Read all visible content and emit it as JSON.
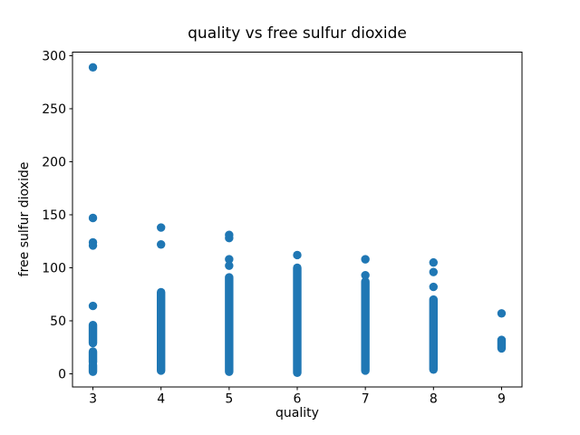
{
  "figure": {
    "title": "quality vs free sulfur dioxide",
    "xlabel": "quality",
    "ylabel": "free sulfur dioxide"
  },
  "chart_data": {
    "type": "scatter",
    "title": "quality vs free sulfur dioxide",
    "xlabel": "quality",
    "ylabel": "free sulfur dioxide",
    "marker_color": "#1f77b4",
    "background_color": "#ffffff",
    "grid": false,
    "legend": null,
    "xlim": [
      2.7,
      9.3
    ],
    "ylim": [
      -12.4,
      303.4
    ],
    "xticks": [
      3,
      4,
      5,
      6,
      7,
      8,
      9
    ],
    "yticks": [
      0,
      50,
      100,
      150,
      200,
      250,
      300
    ],
    "series": [
      {
        "quality": 3,
        "outlier_points": [
          289,
          147,
          124,
          121,
          64
        ],
        "dense_clusters": [
          [
            29,
            46
          ],
          [
            11,
            21
          ],
          [
            2,
            8
          ]
        ]
      },
      {
        "quality": 4,
        "outlier_points": [
          138,
          122
        ],
        "dense_clusters": [
          [
            3,
            77
          ]
        ]
      },
      {
        "quality": 5,
        "outlier_points": [
          131,
          128,
          108,
          102
        ],
        "dense_clusters": [
          [
            2,
            91
          ]
        ]
      },
      {
        "quality": 6,
        "outlier_points": [
          112
        ],
        "dense_clusters": [
          [
            1,
            100
          ]
        ]
      },
      {
        "quality": 7,
        "outlier_points": [
          108,
          93
        ],
        "dense_clusters": [
          [
            3,
            87
          ]
        ]
      },
      {
        "quality": 8,
        "outlier_points": [
          105,
          96,
          82
        ],
        "dense_clusters": [
          [
            4,
            70
          ]
        ]
      },
      {
        "quality": 9,
        "outlier_points": [
          57
        ],
        "dense_clusters": [
          [
            24,
            32
          ]
        ]
      }
    ]
  }
}
